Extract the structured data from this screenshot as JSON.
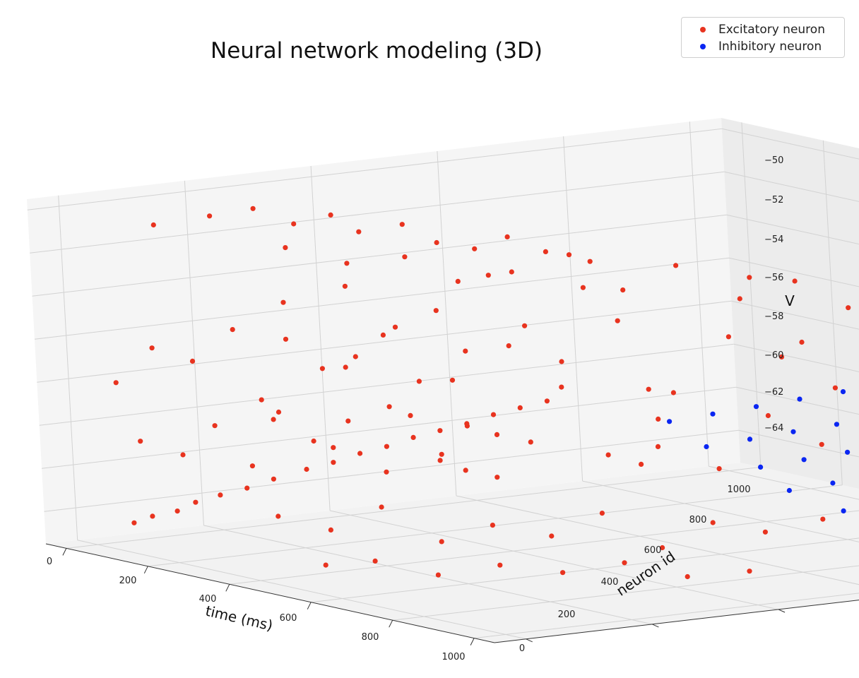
{
  "chart_data": {
    "type": "scatter",
    "projection": "3d",
    "title": "Neural network modeling (3D)",
    "xlabel": "time (ms)",
    "ylabel": "neuron id",
    "zlabel": "V",
    "xlim": [
      -50,
      1050
    ],
    "ylim": [
      -50,
      1050
    ],
    "zlim": [
      -65.5,
      -49.5
    ],
    "xticks": [
      "0",
      "200",
      "400",
      "600",
      "800",
      "1000"
    ],
    "yticks": [
      "0",
      "200",
      "400",
      "600",
      "800",
      "1000"
    ],
    "zticks": [
      "−64",
      "−62",
      "−60",
      "−58",
      "−56",
      "−54",
      "−52",
      "−50"
    ],
    "grid": true,
    "legend_position": "top-right",
    "series": [
      {
        "name": "Excitatory neuron",
        "color": "#e8331f",
        "points": [
          [
            30,
            40,
            -64.5
          ],
          [
            45,
            60,
            -64.2
          ],
          [
            60,
            90,
            -64.0
          ],
          [
            75,
            110,
            -63.6
          ],
          [
            90,
            140,
            -63.3
          ],
          [
            110,
            170,
            -63.0
          ],
          [
            130,
            200,
            -62.6
          ],
          [
            150,
            240,
            -62.2
          ],
          [
            170,
            270,
            -61.9
          ],
          [
            190,
            300,
            -61.5
          ],
          [
            210,
            330,
            -61.2
          ],
          [
            230,
            360,
            -60.8
          ],
          [
            250,
            390,
            -60.5
          ],
          [
            270,
            420,
            -60.2
          ],
          [
            290,
            450,
            -59.8
          ],
          [
            310,
            480,
            -59.5
          ],
          [
            40,
            90,
            -50.8
          ],
          [
            70,
            160,
            -50.5
          ],
          [
            100,
            210,
            -50.2
          ],
          [
            120,
            260,
            -51.0
          ],
          [
            150,
            300,
            -50.6
          ],
          [
            170,
            330,
            -51.4
          ],
          [
            200,
            380,
            -51.1
          ],
          [
            220,
            420,
            -52.0
          ],
          [
            250,
            460,
            -52.3
          ],
          [
            270,
            500,
            -51.8
          ],
          [
            300,
            540,
            -52.5
          ],
          [
            330,
            590,
            -53.0
          ],
          [
            20,
            30,
            -58.0
          ],
          [
            35,
            80,
            -56.5
          ],
          [
            55,
            130,
            -57.2
          ],
          [
            80,
            180,
            -55.8
          ],
          [
            95,
            210,
            -59.1
          ],
          [
            115,
            240,
            -54.6
          ],
          [
            140,
            280,
            -57.7
          ],
          [
            160,
            310,
            -53.9
          ],
          [
            185,
            350,
            -56.2
          ],
          [
            205,
            390,
            -58.4
          ],
          [
            225,
            410,
            -55.1
          ],
          [
            245,
            440,
            -57.0
          ],
          [
            265,
            470,
            -53.5
          ],
          [
            285,
            510,
            -55.9
          ],
          [
            305,
            550,
            -58.8
          ],
          [
            325,
            580,
            -54.2
          ],
          [
            25,
            60,
            -60.8
          ],
          [
            50,
            110,
            -61.5
          ],
          [
            70,
            150,
            -60.2
          ],
          [
            95,
            190,
            -62.1
          ],
          [
            120,
            220,
            -59.6
          ],
          [
            140,
            260,
            -61.0
          ],
          [
            165,
            300,
            -60.1
          ],
          [
            190,
            340,
            -62.5
          ],
          [
            210,
            370,
            -59.9
          ],
          [
            235,
            400,
            -61.7
          ],
          [
            255,
            430,
            -60.4
          ],
          [
            275,
            460,
            -62.8
          ],
          [
            300,
            500,
            -61.2
          ],
          [
            380,
            80,
            -50.4
          ],
          [
            420,
            150,
            -51.2
          ],
          [
            470,
            210,
            -50.9
          ],
          [
            520,
            260,
            -52.0
          ],
          [
            560,
            320,
            -51.6
          ],
          [
            610,
            380,
            -50.8
          ],
          [
            660,
            430,
            -52.4
          ],
          [
            700,
            490,
            -51.3
          ],
          [
            760,
            550,
            -52.8
          ],
          [
            820,
            600,
            -51.9
          ],
          [
            870,
            650,
            -53.1
          ],
          [
            920,
            700,
            -52.2
          ],
          [
            400,
            60,
            -54.5
          ],
          [
            450,
            120,
            -55.8
          ],
          [
            500,
            170,
            -53.9
          ],
          [
            540,
            230,
            -56.4
          ],
          [
            590,
            290,
            -54.8
          ],
          [
            640,
            340,
            -55.5
          ],
          [
            690,
            400,
            -53.6
          ],
          [
            740,
            450,
            -56.9
          ],
          [
            790,
            510,
            -54.3
          ],
          [
            840,
            560,
            -55.2
          ],
          [
            890,
            610,
            -56.6
          ],
          [
            940,
            660,
            -54.0
          ],
          [
            390,
            40,
            -58.2
          ],
          [
            440,
            100,
            -59.5
          ],
          [
            490,
            160,
            -57.6
          ],
          [
            530,
            210,
            -60.1
          ],
          [
            580,
            270,
            -58.9
          ],
          [
            630,
            320,
            -57.3
          ],
          [
            680,
            380,
            -59.8
          ],
          [
            730,
            430,
            -58.1
          ],
          [
            780,
            490,
            -60.4
          ],
          [
            830,
            540,
            -57.9
          ],
          [
            880,
            590,
            -59.2
          ],
          [
            930,
            640,
            -58.6
          ],
          [
            420,
            20,
            -62.5
          ],
          [
            470,
            70,
            -63.1
          ],
          [
            520,
            120,
            -62.0
          ],
          [
            570,
            180,
            -63.6
          ],
          [
            620,
            230,
            -62.8
          ],
          [
            670,
            290,
            -63.3
          ],
          [
            720,
            340,
            -62.2
          ],
          [
            770,
            400,
            -63.8
          ],
          [
            820,
            450,
            -62.6
          ],
          [
            870,
            500,
            -63.0
          ],
          [
            920,
            560,
            -62.4
          ],
          [
            970,
            610,
            -63.5
          ],
          [
            500,
            40,
            -64.5
          ],
          [
            560,
            80,
            -64.2
          ],
          [
            620,
            140,
            -64.8
          ],
          [
            680,
            200,
            -64.3
          ],
          [
            740,
            260,
            -64.6
          ],
          [
            800,
            320,
            -64.1
          ],
          [
            860,
            380,
            -64.7
          ],
          [
            920,
            440,
            -64.4
          ],
          [
            350,
            200,
            -56.0
          ],
          [
            600,
            500,
            -57.5
          ],
          [
            750,
            650,
            -55.2
          ],
          [
            450,
            300,
            -61.2
          ],
          [
            650,
            450,
            -60.6
          ],
          [
            850,
            750,
            -59.5
          ],
          [
            550,
            700,
            -53.2
          ],
          [
            700,
            850,
            -54.1
          ],
          [
            300,
            700,
            -62.1
          ]
        ]
      },
      {
        "name": "Inhibitory neuron",
        "color": "#0a26f2",
        "points": [
          [
            300,
            720,
            -61.0
          ],
          [
            330,
            770,
            -60.7
          ],
          [
            360,
            820,
            -60.4
          ],
          [
            390,
            870,
            -60.1
          ],
          [
            420,
            920,
            -59.8
          ],
          [
            420,
            700,
            -61.6
          ],
          [
            450,
            750,
            -61.3
          ],
          [
            480,
            800,
            -61.0
          ],
          [
            510,
            850,
            -60.7
          ],
          [
            540,
            900,
            -60.4
          ],
          [
            520,
            720,
            -62.2
          ],
          [
            550,
            770,
            -61.9
          ],
          [
            580,
            820,
            -61.6
          ],
          [
            610,
            870,
            -61.3
          ],
          [
            620,
            700,
            -62.8
          ],
          [
            650,
            750,
            -62.5
          ],
          [
            680,
            800,
            -62.2
          ],
          [
            710,
            850,
            -61.9
          ],
          [
            720,
            720,
            -63.4
          ],
          [
            750,
            770,
            -63.1
          ],
          [
            780,
            820,
            -62.8
          ],
          [
            810,
            870,
            -62.5
          ],
          [
            820,
            700,
            -63.9
          ],
          [
            850,
            750,
            -63.6
          ],
          [
            880,
            800,
            -63.3
          ],
          [
            910,
            850,
            -63.0
          ],
          [
            920,
            720,
            -64.4
          ],
          [
            950,
            770,
            -64.1
          ],
          [
            980,
            820,
            -63.8
          ],
          [
            1000,
            870,
            -63.6
          ]
        ]
      }
    ]
  }
}
